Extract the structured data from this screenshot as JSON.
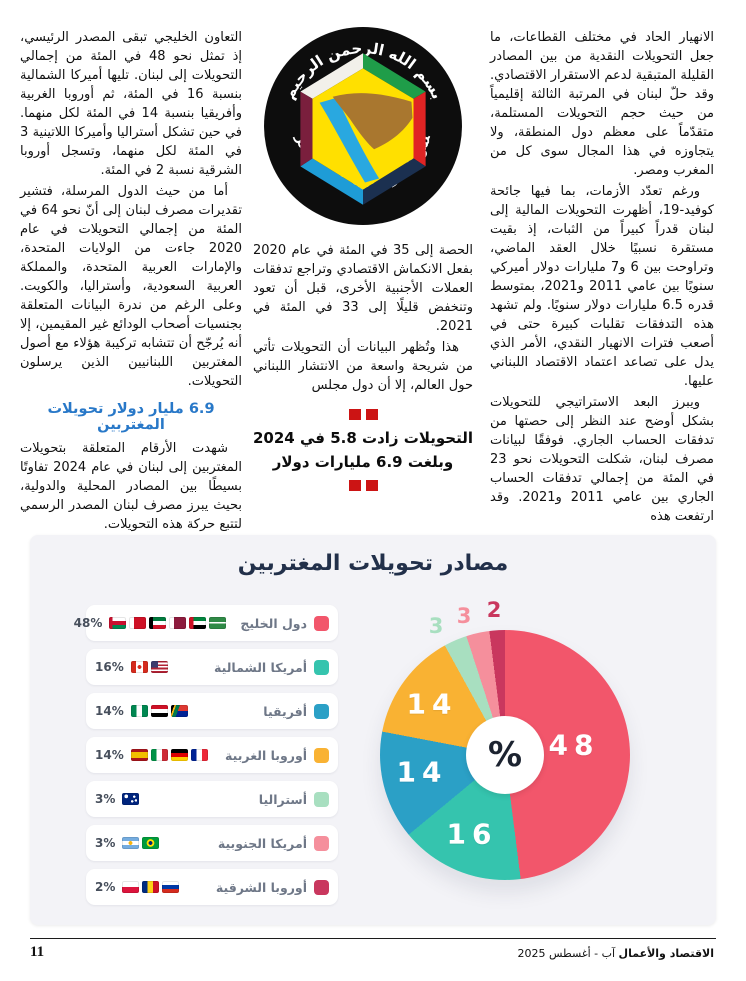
{
  "page": {
    "number": "11",
    "footer_credit_bold": "الاقتصاد والأعمال",
    "footer_credit_rest": "آب - أغسطس 2025"
  },
  "article": {
    "logo": {
      "top_text": "بسم الله الرحمن الرحيم",
      "bottom_text": "مجلس التعاون لدول الخليج العربية"
    },
    "column_right": {
      "p1": "الانهيار الحاد في مختلف القطاعات، ما جعل التحويلات النقدية من بين المصادر القليلة المتبقية لدعم الاستقرار الاقتصادي. وقد حلّ لبنان في المرتبة الثالثة إقليمياً من حيث حجم التحويلات المستلمة، متقدّماً على معظم دول المنطقة، ولا يتجاوزه في هذا المجال سوى كل من المغرب ومصر.",
      "p2": "ورغم تعدّد الأزمات، بما فيها جائحة كوفيد-19، أظهرت التحويلات المالية إلى لبنان قدراً كبيراً من الثبات، إذ بقيت مستقرة نسبيًا خلال العقد الماضي، وتراوحت بين 6 و7 مليارات دولار أميركي سنويًا بين عامي 2011 و2021، بمتوسط قدره 6.5 مليارات دولار سنويًا. ولم تشهد هذه التدفقات تقلبات كبيرة حتى في أصعب فترات الانهيار النقدي، الأمر الذي يدل على تصاعد اعتماد الاقتصاد اللبناني عليها.",
      "p3": "ويبرز البعد الاستراتيجي للتحويلات بشكل أوضح عند النظر إلى حصتها من تدفقات الحساب الجاري. فوفقًا لبيانات مصرف لبنان، شكلت التحويلات نحو 23 في المئة من إجمالي تدفقات الحساب الجاري بين عامي 2011 و2021. وقد ارتفعت هذه"
    },
    "column_middle": {
      "p1": "الحصة إلى 35 في المئة في عام 2020 بفعل الانكماش الاقتصادي وتراجع تدفقات العملات الأجنبية الأخرى، قبل أن تعود وتنخفض قليلًا إلى 33 في المئة في 2021.",
      "p2": "هذا وتُظهر البيانات أن التحويلات تأتي من شريحة واسعة من الانتشار اللبناني حول العالم، إلا أن دول مجلس"
    },
    "pull_quote": {
      "line1": "التحويلات زادت 5.8 في 2024",
      "line2": "وبلغت 6.9 مليارات دولار"
    },
    "column_left": {
      "p1": "التعاون الخليجي تبقى المصدر الرئيسي، إذ تمثل نحو 48 في المئة من إجمالي التحويلات إلى لبنان. تليها أميركا الشمالية بنسبة 16 في المئة، ثم أوروبا الغربية وأفريقيا بنسبة 14 في المئة لكل منهما. في حين تشكل أستراليا وأميركا اللاتينية 3 في المئة لكل منهما، وتسجل أوروبا الشرقية نسبة 2 في المئة.",
      "p2": "أما من حيث الدول المرسلة، فتشير تقديرات مصرف لبنان إلى أنّ نحو 64 في المئة من إجمالي التحويلات في عام 2020 جاءت من الولايات المتحدة، والإمارات العربية المتحدة، والمملكة العربية السعودية، وأستراليا، والكويت. وعلى الرغم من ندرة البيانات المتعلقة بجنسيات أصحاب الودائع غير المقيمين، إلا أنه يُرجّح أن تتشابه تركيبة هؤلاء مع أصول المغتربين اللبنانيين الذين يرسلون التحويلات.",
      "subheading": "6.9 مليار دولار تحويلات المغتربين",
      "p3": "شهدت الأرقام المتعلقة بتحويلات المغتربين إلى لبنان في عام 2024 تفاوتًا بسيطًا بين المصادر المحلية والدولية، بحيث يبرز مصرف لبنان المصدر الرسمي لتتبع حركة هذه التحويلات."
    }
  },
  "chart_data": {
    "type": "pie",
    "title": "مصادر تحويلات المغتربين",
    "center_label": "%",
    "legend_position": "left",
    "start_angle_deg": 0,
    "direction": "clockwise",
    "segments": [
      {
        "label": "دول الخليج",
        "value": 48,
        "percent_label": "48%",
        "color": "#f2566b",
        "flags": [
          "saudi-arabia",
          "uae",
          "qatar",
          "kuwait",
          "bahrain",
          "oman"
        ]
      },
      {
        "label": "أمريكا الشمالية",
        "value": 16,
        "percent_label": "16%",
        "color": "#35c4ae",
        "flags": [
          "usa",
          "canada"
        ]
      },
      {
        "label": "أفريقيا",
        "value": 14,
        "percent_label": "14%",
        "color": "#2ba0c6",
        "flags": [
          "south-africa",
          "egypt",
          "nigeria"
        ]
      },
      {
        "label": "أوروبا الغربية",
        "value": 14,
        "percent_label": "14%",
        "color": "#f9b233",
        "flags": [
          "france",
          "germany",
          "italy",
          "spain"
        ]
      },
      {
        "label": "أستراليا",
        "value": 3,
        "percent_label": "3%",
        "color": "#a8dfc0",
        "flags": [
          "australia"
        ]
      },
      {
        "label": "أمريكا الجنوبية",
        "value": 3,
        "percent_label": "3%",
        "color": "#f58f9c",
        "flags": [
          "brazil",
          "argentina"
        ]
      },
      {
        "label": "أوروبا الشرقية",
        "value": 2,
        "percent_label": "2%",
        "color": "#c9375e",
        "flags": [
          "russia",
          "romania",
          "poland"
        ]
      }
    ]
  },
  "colors": {
    "pull_quote_accent": "#cc1414",
    "subheading_blue": "#2878c8",
    "chart_card_bg": "#f3f3f7",
    "chart_title_navy": "#22304a"
  }
}
